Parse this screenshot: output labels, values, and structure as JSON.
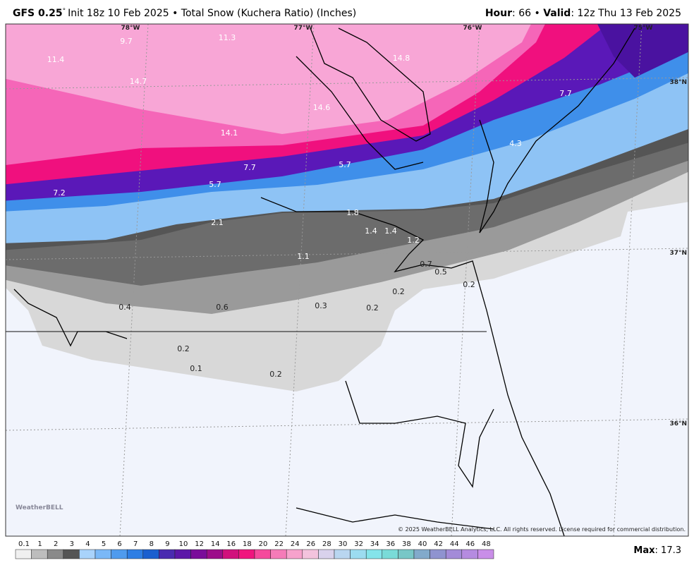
{
  "header": {
    "model": "GFS 0.25",
    "degree": "°",
    "title": "Init 18z 10 Feb 2025 • Total Snow (Kuchera Ratio) (Inches)",
    "hour_key": "Hour",
    "hour_value": ": 66 • ",
    "valid_key": "Valid",
    "valid_value": ": 12z Thu 13 Feb 2025"
  },
  "map": {
    "longitudes": [
      "78°W",
      "77°W",
      "76°W",
      "75°W"
    ],
    "latitudes": [
      "38°N",
      "37°N",
      "36°N"
    ],
    "amounts": [
      "9.7",
      "11.3",
      "14.8",
      "11.4",
      "14.7",
      "14.6",
      "7.7",
      "14.1",
      "4.3",
      "7.7",
      "5.7",
      "5.7",
      "7.2",
      "1.8",
      "2.1",
      "1.4",
      "1.4",
      "1.2",
      "1.1",
      "0.7",
      "0.5",
      "0.2",
      "0.2",
      "0.4",
      "0.6",
      "0.3",
      "0.2",
      "0.2",
      "0.1",
      "0.2"
    ],
    "logo": "WeatherBELL",
    "copyright": "© 2025 WeatherBELL Analytics, LLC. All rights reserved. License required for commercial distribution."
  },
  "legend": {
    "ticks": [
      "0.1",
      "1",
      "2",
      "3",
      "4",
      "5",
      "6",
      "7",
      "8",
      "9",
      "10",
      "12",
      "14",
      "16",
      "18",
      "20",
      "22",
      "24",
      "26",
      "28",
      "30",
      "32",
      "34",
      "36",
      "38",
      "40",
      "42",
      "44",
      "46",
      "48"
    ],
    "max_key": "Max",
    "max_value": ": 17.3"
  }
}
